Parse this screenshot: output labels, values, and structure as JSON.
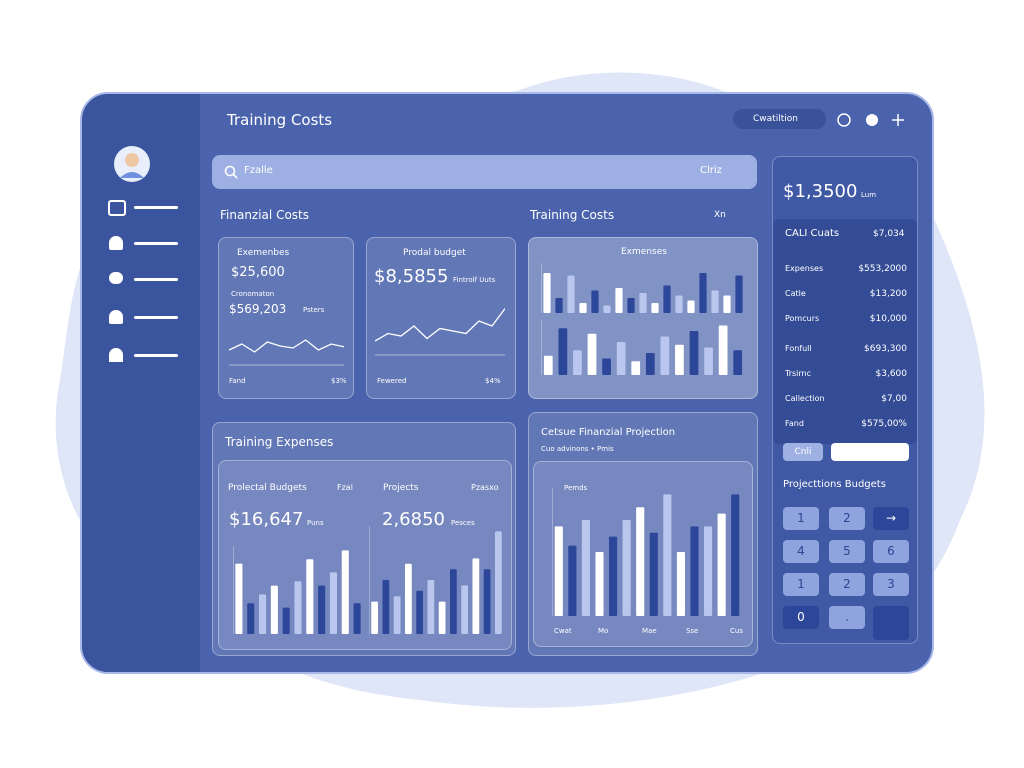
{
  "header": {
    "title": "Training Costs",
    "pill": "Cwatiltion"
  },
  "search": {
    "placeholder": "Fzalle",
    "right": "Clriz"
  },
  "financial": {
    "title": "Finanzial Costs",
    "card1": {
      "label": "Exemenbes",
      "amount": "$25,600",
      "sub": "Cronomaton",
      "amount2": "$569,203",
      "note": "Psters",
      "footer_left": "Fand",
      "footer_right": "$3%",
      "line": [
        40,
        55,
        35,
        60,
        50,
        45,
        65,
        40,
        55,
        48
      ]
    },
    "card2": {
      "label": "Prodal budget",
      "amount": "$8,5855",
      "note": "Fintrolf Uuts",
      "footer_left": "Fewered",
      "footer_right": "$4%",
      "line": [
        30,
        45,
        40,
        60,
        35,
        55,
        50,
        45,
        70,
        60,
        95
      ]
    }
  },
  "training": {
    "title": "Training Costs",
    "link": "Xn",
    "card": {
      "label": "Exmenses",
      "top_bars": [
        80,
        30,
        75,
        20,
        45,
        15,
        50,
        30,
        40,
        20,
        55,
        35,
        25,
        80,
        45,
        35,
        75
      ],
      "bottom_bars": [
        35,
        85,
        45,
        75,
        30,
        60,
        25,
        40,
        70,
        55,
        80,
        50,
        90,
        45
      ]
    }
  },
  "summary": {
    "amount": "$1,3500",
    "unit": "Lum",
    "list_title": "CALI Cuats",
    "list_total": "$7,034",
    "rows": [
      [
        "Expenses",
        "$553,2000"
      ],
      [
        "Catle",
        "$13,200"
      ],
      [
        "Pomcurs",
        "$10,000"
      ],
      [
        "Fonfull",
        "$693,300"
      ],
      [
        "Trsirnc",
        "$3,600"
      ],
      [
        "Callection",
        "$7,00"
      ],
      [
        "Fand",
        "$575,00%"
      ]
    ],
    "button": "Cnli",
    "keypad_title": "Projecttions Budgets",
    "keys": [
      "1",
      "2",
      "→",
      "4",
      "5",
      "6",
      "1",
      "2",
      "3",
      "0",
      "."
    ]
  },
  "expenses": {
    "title": "Training Expenses",
    "left": {
      "label": "Prolectal Budgets",
      "tag": "Fzal",
      "amount": "$16,647",
      "unit": "Puns",
      "bars": [
        80,
        35,
        45,
        55,
        30,
        60,
        85,
        55,
        70,
        95,
        35
      ]
    },
    "right": {
      "label": "Projects",
      "tag": "Pzasxo",
      "amount": "2,6850",
      "unit": "Pesces",
      "bars": [
        30,
        50,
        35,
        65,
        40,
        50,
        30,
        60,
        45,
        70,
        60,
        95
      ]
    }
  },
  "projection": {
    "title": "Cetsue Finanzial Projection",
    "subtitle": "Cuo advinons • Pmis",
    "chart_label": "Pemds",
    "bars": [
      70,
      55,
      75,
      50,
      62,
      75,
      85,
      65,
      95,
      50,
      70,
      70,
      80,
      95
    ],
    "x_labels": [
      "Cwat",
      "Mo",
      "Mae",
      "Sse",
      "Cus"
    ]
  }
}
